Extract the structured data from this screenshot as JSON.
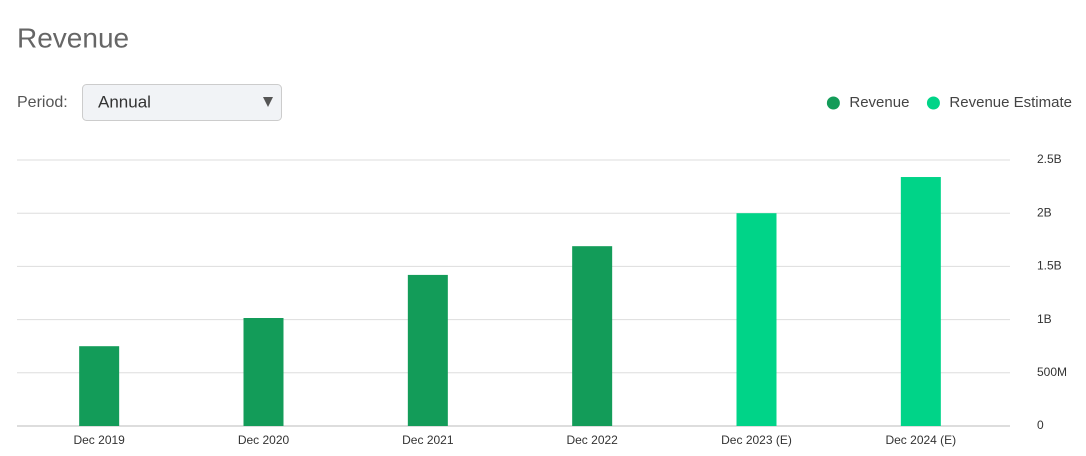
{
  "period": {
    "label": "Period:",
    "value": "Annual"
  },
  "chart_data": {
    "type": "bar",
    "title": "Revenue",
    "categories": [
      "Dec 2019",
      "Dec 2020",
      "Dec 2021",
      "Dec 2022",
      "Dec 2023 (E)",
      "Dec 2024 (E)"
    ],
    "series": [
      {
        "name": "Revenue",
        "color": "#139c59",
        "values": [
          750000000,
          1015000000,
          1420000000,
          1690000000,
          null,
          null
        ]
      },
      {
        "name": "Revenue Estimate",
        "color": "#00d488",
        "values": [
          null,
          null,
          null,
          null,
          2000000000,
          2340000000
        ]
      }
    ],
    "ylim": [
      0,
      2500000000
    ],
    "yticks": [
      0,
      {
        "value": 500000000,
        "label": "500M"
      },
      {
        "value": 1000000000,
        "label": "1B"
      },
      {
        "value": 1500000000,
        "label": "1.5B"
      },
      {
        "value": 2000000000,
        "label": "2B"
      },
      {
        "value": 2500000000,
        "label": "2.5B"
      }
    ],
    "grid": true,
    "legend": "top-right"
  }
}
